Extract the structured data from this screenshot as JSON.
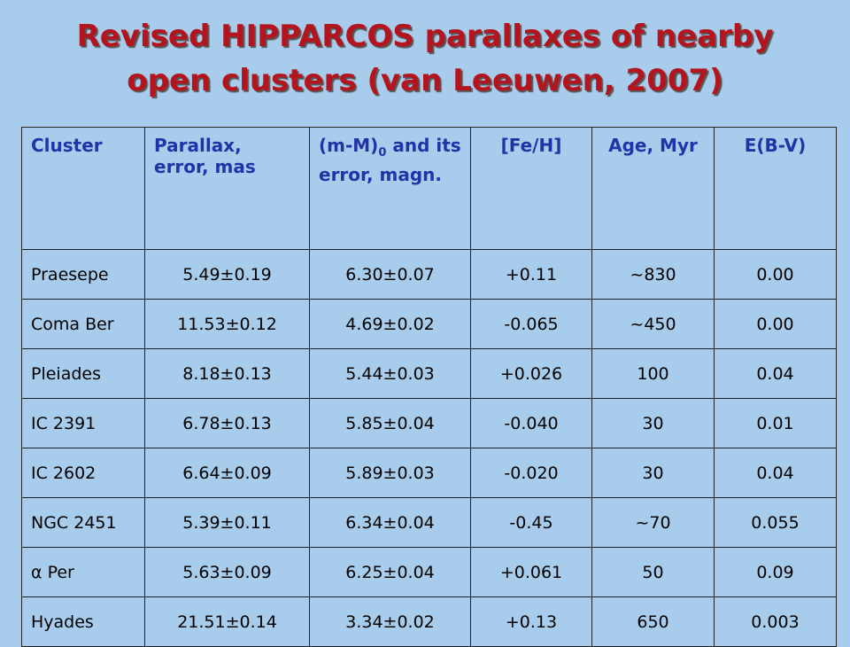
{
  "header": {
    "title": [
      "Revised HIPPARCOS parallaxes of nearby",
      "open clusters (van Leeuwen, 2007)"
    ]
  },
  "table": {
    "columns": [
      [
        "Cluster"
      ],
      [
        "Parallax, error, mas"
      ],
      [
        "(m-M)",
        "0",
        " and its error, magn."
      ],
      [
        "[Fe/H]"
      ],
      [
        "Age, Myr"
      ],
      [
        "E(B-V)"
      ]
    ],
    "rows": [
      [
        "Praesepe",
        "5.49±0.19",
        "6.30±0.07",
        "+0.11",
        "~830",
        "0.00"
      ],
      [
        "Coma Ber",
        "11.53±0.12",
        "4.69±0.02",
        "-0.065",
        "~450",
        "0.00"
      ],
      [
        "Pleiades",
        "8.18±0.13",
        "5.44±0.03",
        "+0.026",
        "100",
        "0.04"
      ],
      [
        "IC 2391",
        "6.78±0.13",
        "5.85±0.04",
        "-0.040",
        "30",
        "0.01"
      ],
      [
        "IC 2602",
        "6.64±0.09",
        "5.89±0.03",
        "-0.020",
        "30",
        "0.04"
      ],
      [
        "NGC 2451",
        "5.39±0.11",
        "6.34±0.04",
        "-0.45",
        "~70",
        "0.055"
      ],
      [
        "α Per",
        "5.63±0.09",
        "6.25±0.04",
        "+0.061",
        "50",
        "0.09"
      ],
      [
        "Hyades",
        "21.51±0.14",
        "3.34±0.02",
        "+0.13",
        "650",
        "0.003"
      ]
    ]
  }
}
